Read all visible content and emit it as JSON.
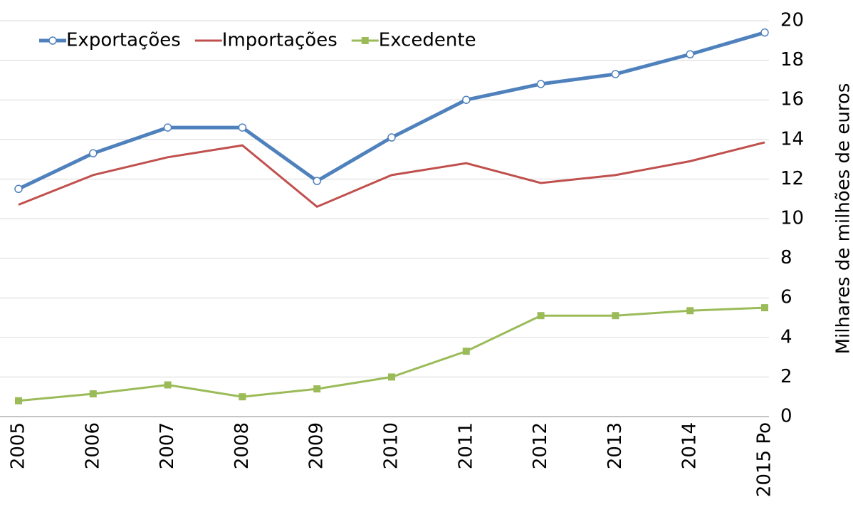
{
  "chart_data": {
    "type": "line",
    "y_label": "Milhares de milhões de euros",
    "categories": [
      "2005",
      "2006",
      "2007",
      "2008",
      "2009",
      "2010",
      "2011",
      "2012",
      "2013",
      "2014",
      "2015 Po"
    ],
    "series": [
      {
        "name": "Exportações",
        "color": "#4f81bd",
        "marker": "circle",
        "values": [
          11.5,
          13.3,
          14.6,
          14.6,
          11.9,
          14.1,
          16.0,
          16.8,
          17.3,
          18.3,
          19.4
        ]
      },
      {
        "name": "Importações",
        "color": "#c0504d",
        "marker": "none",
        "values": [
          10.7,
          12.2,
          13.1,
          13.7,
          10.6,
          12.2,
          12.8,
          11.8,
          12.2,
          12.9,
          13.85
        ]
      },
      {
        "name": "Excedente",
        "color": "#9bbb59",
        "marker": "square",
        "values": [
          0.8,
          1.15,
          1.6,
          1.0,
          1.4,
          2.0,
          3.3,
          5.1,
          5.1,
          5.35,
          5.5
        ]
      }
    ],
    "ylim": [
      0,
      20
    ],
    "yticks": [
      0,
      2,
      4,
      6,
      8,
      10,
      12,
      14,
      16,
      18,
      20
    ],
    "grid": true,
    "legend": "top-left"
  }
}
